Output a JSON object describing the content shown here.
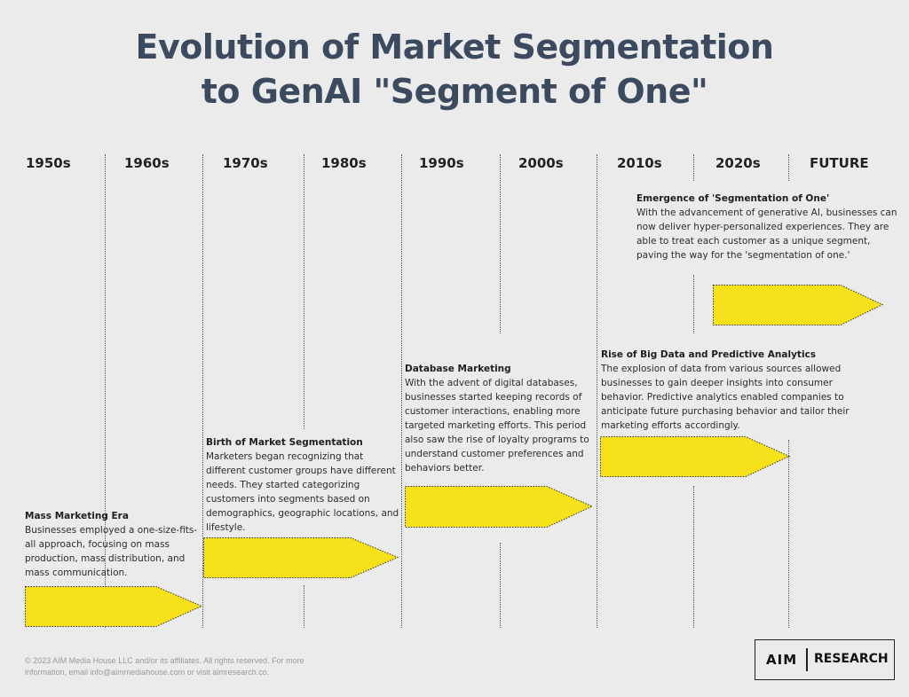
{
  "title": {
    "line1": "Evolution of Market Segmentation",
    "line2": "to GenAI \"Segment of One\""
  },
  "decades": [
    "1950s",
    "1960s",
    "1970s",
    "1980s",
    "1990s",
    "2000s",
    "2010s",
    "2020s",
    "FUTURE"
  ],
  "eras": [
    {
      "heading": "Mass Marketing Era",
      "text": "Businesses employed a one-size-fits-all approach, focusing on mass production, mass distribution, and mass communication."
    },
    {
      "heading": "Birth of Market Segmentation",
      "text": "Marketers began recognizing that different customer groups have different needs. They started categorizing customers into segments based on demographics, geographic locations, and lifestyle."
    },
    {
      "heading": "Database Marketing",
      "text": "With the advent of digital databases, businesses started keeping records of customer interactions, enabling more targeted marketing efforts. This period also saw the rise of loyalty programs to understand customer preferences and behaviors better."
    },
    {
      "heading": "Rise of Big Data and Predictive Analytics",
      "text": "The explosion of data from various sources allowed businesses to gain deeper insights into consumer behavior. Predictive analytics enabled companies to anticipate future purchasing behavior and tailor their marketing efforts accordingly."
    },
    {
      "heading": "Emergence of 'Segmentation of One'",
      "text": "With the advancement of generative AI, businesses can now deliver hyper-personalized experiences. They are able to treat each customer as a unique segment, paving the way for the 'segmentation of one.'"
    }
  ],
  "footer": "© 2023 AIM Media House LLC and/or its affiliates. All rights reserved. For more information, email info@aimmediahouse.com or visit aimresearch.co.",
  "logo": {
    "mark": "AIM",
    "word": "RESEARCH"
  },
  "colors": {
    "arrow": "#f7e11a",
    "title": "#3c4a60",
    "background": "#ebebeb"
  }
}
